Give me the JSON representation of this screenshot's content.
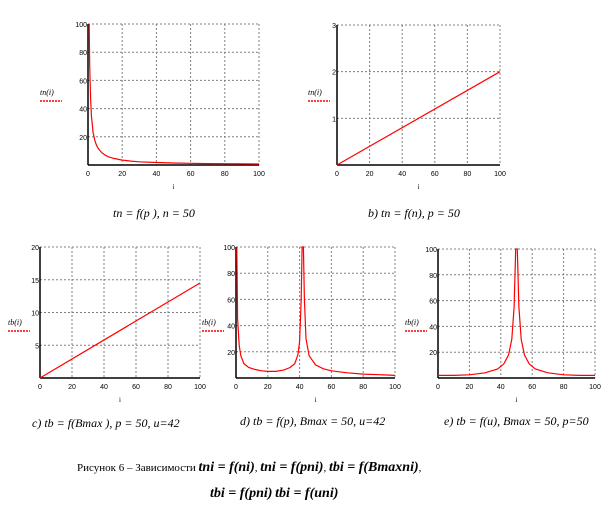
{
  "colors": {
    "series": "#ff0000",
    "grid": "#808080",
    "axis": "#000000"
  },
  "chart_data": [
    {
      "type": "line",
      "ylabel": "tn(i)",
      "xlabel": "i",
      "xlim": [
        0,
        100
      ],
      "ylim": [
        0,
        100
      ],
      "xticks": [
        0,
        20,
        40,
        60,
        80,
        100
      ],
      "yticks": [
        0,
        20,
        40,
        60,
        80,
        100
      ],
      "grid": true,
      "x": [
        0.7,
        1,
        1.5,
        2,
        3,
        4,
        5,
        6,
        8,
        10,
        12,
        15,
        20,
        25,
        30,
        40,
        50,
        60,
        70,
        80,
        90,
        100
      ],
      "y": [
        100,
        70,
        47,
        35,
        23,
        17.5,
        14,
        11.7,
        8.8,
        7,
        5.8,
        4.7,
        3.5,
        2.8,
        2.3,
        1.75,
        1.4,
        1.2,
        1,
        0.9,
        0.8,
        0.7
      ],
      "caption": "tn = f(p ), n = 50"
    },
    {
      "type": "line",
      "ylabel": "tn(i)",
      "xlabel": "i",
      "xlim": [
        0,
        100
      ],
      "ylim": [
        0,
        3
      ],
      "xticks": [
        0,
        20,
        40,
        60,
        80,
        100
      ],
      "yticks": [
        0,
        1,
        2,
        3
      ],
      "grid": true,
      "x": [
        0,
        100
      ],
      "y": [
        0,
        2
      ],
      "caption": "b) tn = f(n), p = 50"
    },
    {
      "type": "line",
      "ylabel": "tb(i)",
      "xlabel": "i",
      "xlim": [
        0,
        100
      ],
      "ylim": [
        0,
        20
      ],
      "xticks": [
        0,
        20,
        40,
        60,
        80,
        100
      ],
      "yticks": [
        0,
        5,
        10,
        15,
        20
      ],
      "grid": true,
      "x": [
        0,
        100
      ],
      "y": [
        0,
        14.5
      ],
      "caption": "c) tb = f(Bmax ), p = 50, u=42"
    },
    {
      "type": "line",
      "ylabel": "tb(i)",
      "xlabel": "i",
      "xlim": [
        0,
        100
      ],
      "ylim": [
        0,
        100
      ],
      "xticks": [
        0,
        20,
        40,
        60,
        80,
        100
      ],
      "yticks": [
        0,
        20,
        40,
        60,
        80,
        100
      ],
      "grid": true,
      "x": [
        0.5,
        1,
        2,
        3,
        5,
        8,
        12,
        16,
        20,
        25,
        30,
        34,
        37,
        39,
        40,
        41,
        41.6,
        42.4,
        43,
        44,
        46,
        50,
        55,
        60,
        70,
        80,
        90,
        100
      ],
      "y": [
        100,
        45,
        25,
        17,
        11,
        8,
        6.5,
        5.5,
        5,
        5,
        6,
        8,
        11,
        18,
        28,
        60,
        100,
        100,
        60,
        30,
        17,
        10,
        7,
        5.5,
        4,
        3,
        2.5,
        2
      ],
      "caption": "d) tb = f(p), Bmax = 50, u=42"
    },
    {
      "type": "line",
      "ylabel": "tb(i)",
      "xlabel": "i",
      "xlim": [
        0,
        100
      ],
      "ylim": [
        0,
        100
      ],
      "xticks": [
        0,
        20,
        40,
        60,
        80,
        100
      ],
      "yticks": [
        0,
        20,
        40,
        60,
        80,
        100
      ],
      "grid": true,
      "x": [
        0,
        10,
        20,
        30,
        38,
        42,
        45,
        47,
        48.5,
        49.5,
        50.5,
        51.5,
        53,
        55,
        58,
        62,
        70,
        80,
        90,
        100
      ],
      "y": [
        2,
        2,
        2.5,
        4,
        7,
        11,
        18,
        30,
        55,
        100,
        100,
        55,
        30,
        18,
        11,
        7,
        4,
        2.5,
        2,
        2
      ],
      "caption": "e) tb = f(u), Bmax = 50, p=50"
    }
  ],
  "figure_caption": {
    "prefix": "Рисунок 6 – Зависимости",
    "eq1": "tni = f(ni)",
    "eq2": "tni = f(pni)",
    "eq3": "tbi = f(Bmaxni)",
    "eq4": "tbi = f(pni)",
    "eq5": "tbi = f(uni)",
    "sep": ","
  }
}
